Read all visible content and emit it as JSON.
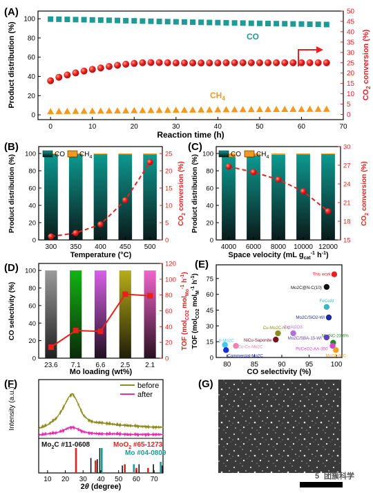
{
  "watermark": "团簇科学",
  "colors": {
    "co": "#1f9a94",
    "ch4": "#f39a1e",
    "conv": "#e8211f",
    "mo": "#e8211f",
    "moo2": "#e8211f",
    "mo_ref": "#1f9a94",
    "before": "#8c8c1e",
    "after": "#e62fae"
  },
  "panels": {
    "A": {
      "label": "(A)",
      "xlabel": "Reaction time (h)",
      "ylabel_left": "Product distribution (%)",
      "ylabel_right": "CO2 conversion (%)",
      "series_co_label": "CO",
      "series_ch4_label": "CH4",
      "xlim": [
        -3,
        70
      ],
      "ylim_left": [
        -5,
        108
      ],
      "ylim_right": [
        -2.5,
        50
      ],
      "xticks": [
        0,
        10,
        20,
        30,
        40,
        50,
        60,
        70
      ],
      "yticks_left": [
        0,
        20,
        40,
        60,
        80,
        100
      ],
      "yticks_right": [
        0,
        5,
        10,
        15,
        20,
        25,
        30,
        35,
        40,
        45,
        50
      ],
      "co": {
        "x": [
          0,
          2,
          4,
          6,
          8,
          10,
          12,
          14,
          16,
          18,
          20,
          22,
          24,
          26,
          28,
          30,
          32,
          34,
          36,
          38,
          40,
          42,
          44,
          46,
          48,
          50,
          52,
          54,
          56,
          58,
          60,
          62,
          64,
          66
        ],
        "y": [
          99.6,
          99.5,
          99.3,
          99.1,
          99,
          98.8,
          98.6,
          98.4,
          98.2,
          98,
          97.8,
          97.6,
          97.4,
          97.2,
          97,
          96.8,
          96.6,
          96.4,
          96.3,
          96.1,
          96,
          95.8,
          95.6,
          95.5,
          95.3,
          95.2,
          95,
          94.9,
          94.8,
          94.6,
          94.5,
          94.3,
          94.2,
          94
        ]
      },
      "ch4": {
        "x": [
          0,
          2,
          4,
          6,
          8,
          10,
          12,
          14,
          16,
          18,
          20,
          22,
          24,
          26,
          28,
          30,
          32,
          34,
          36,
          38,
          40,
          42,
          44,
          46,
          48,
          50,
          52,
          54,
          56,
          58,
          60,
          62,
          64,
          66
        ],
        "y": [
          3.5,
          3.6,
          3.7,
          3.8,
          3.9,
          4,
          4.1,
          4.2,
          4.3,
          4.4,
          4.5,
          4.6,
          4.7,
          4.8,
          4.9,
          5,
          5.1,
          5.2,
          5.3,
          5.3,
          5.4,
          5.5,
          5.5,
          5.6,
          5.6,
          5.7,
          5.7,
          5.8,
          5.8,
          5.9,
          5.9,
          6,
          6,
          6
        ]
      },
      "conversion": {
        "x": [
          0,
          2,
          4,
          6,
          8,
          10,
          12,
          14,
          16,
          18,
          20,
          22,
          24,
          26,
          28,
          30,
          32,
          34,
          36,
          38,
          40,
          42,
          44,
          46,
          48,
          50,
          52,
          54,
          56,
          58,
          60,
          62,
          64,
          66
        ],
        "y": [
          16.3,
          18,
          19.1,
          20.1,
          21,
          21.8,
          22.5,
          23.2,
          23.8,
          24.3,
          24.7,
          25.0,
          25.1,
          25.1,
          25.0,
          24.9,
          24.9,
          24.9,
          24.9,
          24.9,
          24.9,
          25.0,
          25.0,
          25.0,
          25.0,
          25.0,
          25.0,
          25.0,
          25.0,
          25.0,
          25.0,
          25.0,
          25.0,
          25.0
        ]
      }
    },
    "B": {
      "label": "(B)",
      "xlabel": "Temperature (°C)",
      "ylabel_left": "Product distribution (%)",
      "ylabel_right": "CO2 conversion (%)",
      "legend": [
        "CO",
        "CH4"
      ],
      "categories": [
        "300",
        "350",
        "400",
        "450",
        "500"
      ],
      "co": [
        99.6,
        99.5,
        99.4,
        99.3,
        99.2
      ],
      "ch4": [
        0.4,
        0.5,
        0.6,
        0.7,
        0.8
      ],
      "conversion": [
        1,
        2,
        4.5,
        11.5,
        22.5
      ],
      "ylim_left": [
        0,
        108
      ],
      "ylim_right": [
        0,
        27
      ],
      "yticks_left": [
        0,
        20,
        40,
        60,
        80,
        100
      ],
      "yticks_right": [
        0,
        5,
        10,
        15,
        20,
        25
      ]
    },
    "C": {
      "label": "(C)",
      "xlabel": "Space velocity (mL g_cat^-1 h^-1)",
      "ylabel_left": "Product distribution (%)",
      "ylabel_right": "CO2 conversion (%)",
      "legend": [
        "CO",
        "CH4"
      ],
      "categories": [
        "4000",
        "6000",
        "8000",
        "10000",
        "12000"
      ],
      "co": [
        96.5,
        98,
        98.8,
        99.2,
        99.5
      ],
      "ch4": [
        3.5,
        2,
        1.2,
        0.8,
        0.5
      ],
      "conversion": [
        26.8,
        25.9,
        24.7,
        22.8,
        19.6
      ],
      "ylim_left": [
        0,
        108
      ],
      "ylim_right": [
        15,
        30
      ],
      "yticks_left": [
        0,
        20,
        40,
        60,
        80,
        100
      ],
      "yticks_right": [
        15,
        18,
        21,
        24,
        27,
        30
      ]
    },
    "D": {
      "label": "(D)",
      "xlabel": "Mo loading (wt%)",
      "ylabel_left": "CO selectivity (%)",
      "ylabel_right": "TOF (molCO2 molMo-1 h-1)",
      "categories": [
        "23.6",
        "7.1",
        "6.6",
        "2.5",
        "2.1"
      ],
      "bar_colors": [
        "#8a8a8a",
        "#12a512",
        "#d45ce0",
        "#b2a715",
        "#ef5fc6"
      ],
      "selectivity": [
        100,
        100,
        100,
        100,
        100
      ],
      "tof": [
        14,
        35,
        34,
        81,
        79
      ],
      "ylim_left": [
        0,
        108
      ],
      "ylim_right": [
        0,
        120
      ],
      "yticks_left": [
        0,
        20,
        40,
        60,
        80,
        100
      ],
      "yticks_right": [
        0,
        20,
        40,
        60,
        80,
        100,
        120
      ]
    },
    "E": {
      "label": "(E)",
      "xlabel": "CO selectivity (%)",
      "ylabel": "TOF (molCO2 molM-1 h-1)",
      "xlim": [
        78,
        101
      ],
      "ylim": [
        0,
        88
      ],
      "xticks": [
        80,
        85,
        90,
        95,
        100
      ],
      "yticks": [
        0,
        15,
        30,
        45,
        60,
        75
      ],
      "points": [
        {
          "label": "This work",
          "x": 99.6,
          "y": 79,
          "color": "#e8211f"
        },
        {
          "label": "Mo2C@N-C(10)",
          "x": 98.2,
          "y": 67,
          "color": "#111111"
        },
        {
          "label": "FeCeAl",
          "x": 98.2,
          "y": 48,
          "color": "#3cb7c2"
        },
        {
          "label": "Mo2C/SiO2-WI",
          "x": 98.6,
          "y": 38,
          "color": "#1b2a9c"
        },
        {
          "label": "Cu-Mo2C-N-C",
          "x": 89.3,
          "y": 23,
          "color": "#8c8c1e"
        },
        {
          "label": "Fe/Al2O3",
          "x": 92.1,
          "y": 23,
          "color": "#b070e0"
        },
        {
          "label": "Mo/NC-23.6%",
          "x": 99.4,
          "y": 14,
          "color": "#1a8e1a"
        },
        {
          "label": "β-Mo2C",
          "x": 79.6,
          "y": 12,
          "color": "#44c8f0"
        },
        {
          "label": "NiCu-Saponite",
          "x": 88.9,
          "y": 17,
          "color": "#7a1020"
        },
        {
          "label": "Mo2C/SBA-15-WI",
          "x": 98.2,
          "y": 19,
          "color": "#6040b8"
        },
        {
          "label": "Cu-Cs-Mo2C",
          "x": 81.6,
          "y": 11,
          "color": "#f080b0"
        },
        {
          "label": "Pt/CeO2-AA-350",
          "x": 99.3,
          "y": 11,
          "color": "#d445d0"
        },
        {
          "label": "Commercial-Mo2C",
          "x": 79.8,
          "y": 7,
          "color": "#1a2bd0"
        },
        {
          "label": "Mo2C-N-C",
          "x": 99.9,
          "y": 7,
          "color": "#f0a020"
        }
      ]
    },
    "F": {
      "label": "(F)",
      "xlabel": "2θ (degree)",
      "ylabel": "Intensity (a.u.)",
      "legend": [
        "before",
        "after"
      ],
      "xlim": [
        5,
        75
      ],
      "xticks": [
        10,
        20,
        30,
        40,
        50,
        60,
        70
      ],
      "before": {
        "x": [
          5,
          10,
          15,
          18,
          20,
          22,
          24,
          26,
          28,
          30,
          33,
          36,
          40,
          45,
          50,
          55,
          60,
          65,
          70,
          75
        ],
        "y": [
          0.18,
          0.24,
          0.36,
          0.5,
          0.62,
          0.74,
          0.8,
          0.7,
          0.56,
          0.42,
          0.33,
          0.29,
          0.28,
          0.26,
          0.24,
          0.23,
          0.22,
          0.21,
          0.2,
          0.2
        ]
      },
      "after": {
        "x": [
          5,
          10,
          15,
          18,
          20,
          22,
          24,
          26,
          28,
          30,
          33,
          36,
          40,
          45,
          50,
          55,
          60,
          65,
          70,
          75
        ],
        "y": [
          0.06,
          0.08,
          0.1,
          0.13,
          0.16,
          0.19,
          0.2,
          0.18,
          0.15,
          0.12,
          0.1,
          0.09,
          0.08,
          0.08,
          0.08,
          0.07,
          0.07,
          0.07,
          0.07,
          0.07
        ]
      },
      "refs": [
        {
          "label": "Mo2C #11-0608",
          "color": "#111111",
          "peaks": [
            [
              34.4,
              0.6
            ],
            [
              38.0,
              0.55
            ],
            [
              39.4,
              1.0
            ],
            [
              52.1,
              0.3
            ],
            [
              61.5,
              0.35
            ],
            [
              69.6,
              0.35
            ],
            [
              74.6,
              0.3
            ]
          ]
        },
        {
          "label": "MoO2 #65-1273",
          "color": "#e8211f",
          "peaks": [
            [
              26.0,
              1.0
            ],
            [
              37.0,
              0.5
            ],
            [
              53.5,
              0.35
            ],
            [
              60.0,
              0.2
            ],
            [
              66.6,
              0.2
            ]
          ]
        },
        {
          "label": "Mo #04-0809",
          "color": "#1f9a94",
          "peaks": [
            [
              40.5,
              1.0
            ],
            [
              58.6,
              0.35
            ],
            [
              73.7,
              0.45
            ]
          ]
        }
      ]
    },
    "G": {
      "label": "(G)",
      "scale_text": "5"
    }
  }
}
